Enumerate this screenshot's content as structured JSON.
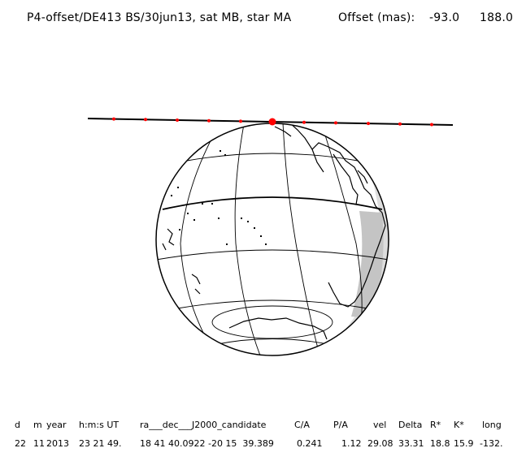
{
  "header": {
    "title": "P4-offset/DE413 BS/30jun13, sat MB, star MA",
    "offset_label": "Offset (mas):",
    "offset_x": "-93.0",
    "offset_y": "188.0"
  },
  "table": {
    "headers": [
      "d",
      "m",
      "year",
      "h:m:s UT",
      "ra___dec___J2000_candidate",
      "C/A",
      "P/A",
      "vel",
      "Delta",
      "R*",
      "K*",
      "long"
    ],
    "values": [
      "22",
      "11",
      "2013",
      "23 21 49.",
      "18 41 40.0922 -20 15  39.389",
      "0.241",
      "1.12",
      "29.08",
      "33.31",
      "18.8",
      "15.9",
      "-132."
    ]
  },
  "colors": {
    "track": "#000000",
    "timing_dots": "#ff0000",
    "night_shade": "#cccccc",
    "globe_lines": "#000000"
  }
}
